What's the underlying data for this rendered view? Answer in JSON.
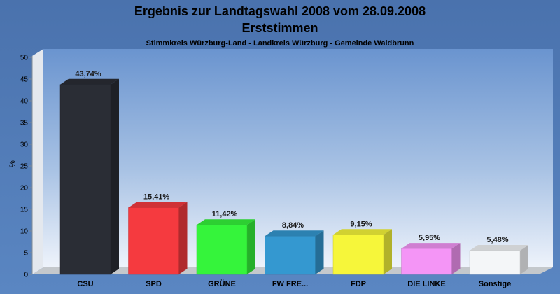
{
  "chart_data": {
    "type": "bar",
    "title": "Ergebnis zur Landtagswahl 2008 vom 28.09.2008",
    "title2": "Erststimmen",
    "subtitle": "Stimmkreis Würzburg-Land - Landkreis Würzburg - Gemeinde Waldbrunn",
    "ylabel": "%",
    "xlabel": "",
    "ylim": [
      0,
      50
    ],
    "yticks": [
      "0",
      "5",
      "10",
      "15",
      "20",
      "25",
      "30",
      "35",
      "40",
      "45",
      "50"
    ],
    "grid": false,
    "categories": [
      "CSU",
      "SPD",
      "GRÜNE",
      "FW FRE...",
      "FDP",
      "DIE LINKE",
      "Sonstige"
    ],
    "values": [
      43.74,
      15.41,
      11.42,
      8.84,
      9.15,
      5.95,
      5.48
    ],
    "value_labels": [
      "43,74%",
      "15,41%",
      "11,42%",
      "8,84%",
      "9,15%",
      "5,95%",
      "5,48%"
    ],
    "colors": [
      "#2a2d35",
      "#f53a3f",
      "#35f43b",
      "#3498d0",
      "#f6f63a",
      "#f495f6",
      "#f4f6f8"
    ]
  }
}
